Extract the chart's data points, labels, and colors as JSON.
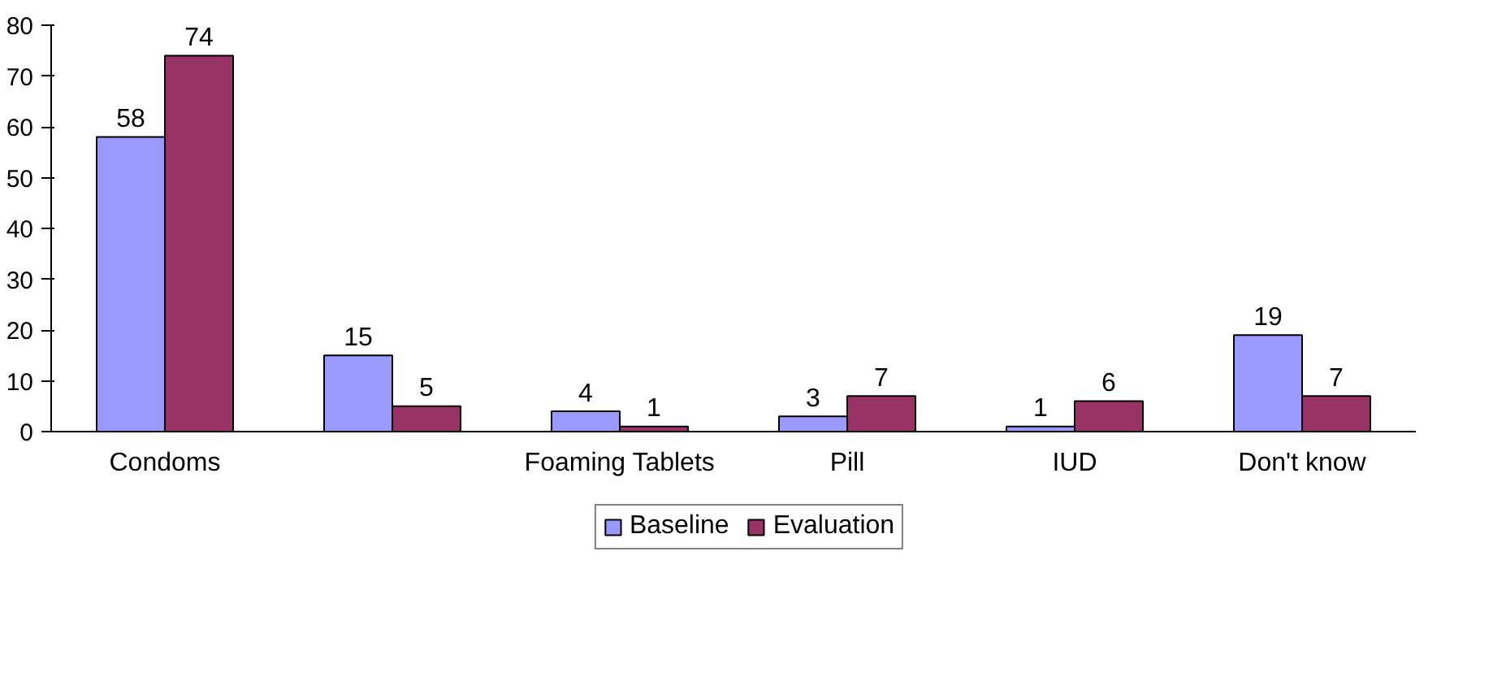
{
  "chart_data": {
    "type": "bar",
    "categories": [
      "Condoms",
      null,
      "Foaming Tablets",
      "Pill",
      "IUD",
      "Don't know"
    ],
    "series": [
      {
        "name": "Baseline",
        "color": "#9999ff",
        "values": [
          58,
          15,
          4,
          3,
          1,
          19
        ]
      },
      {
        "name": "Evaluation",
        "color": "#993366",
        "values": [
          74,
          5,
          1,
          7,
          6,
          7
        ]
      }
    ],
    "ylim": [
      0,
      80
    ],
    "yticks": [
      0,
      10,
      20,
      30,
      40,
      50,
      60,
      70,
      80
    ],
    "grid": false,
    "legend": "bottom",
    "data_labels": true
  }
}
